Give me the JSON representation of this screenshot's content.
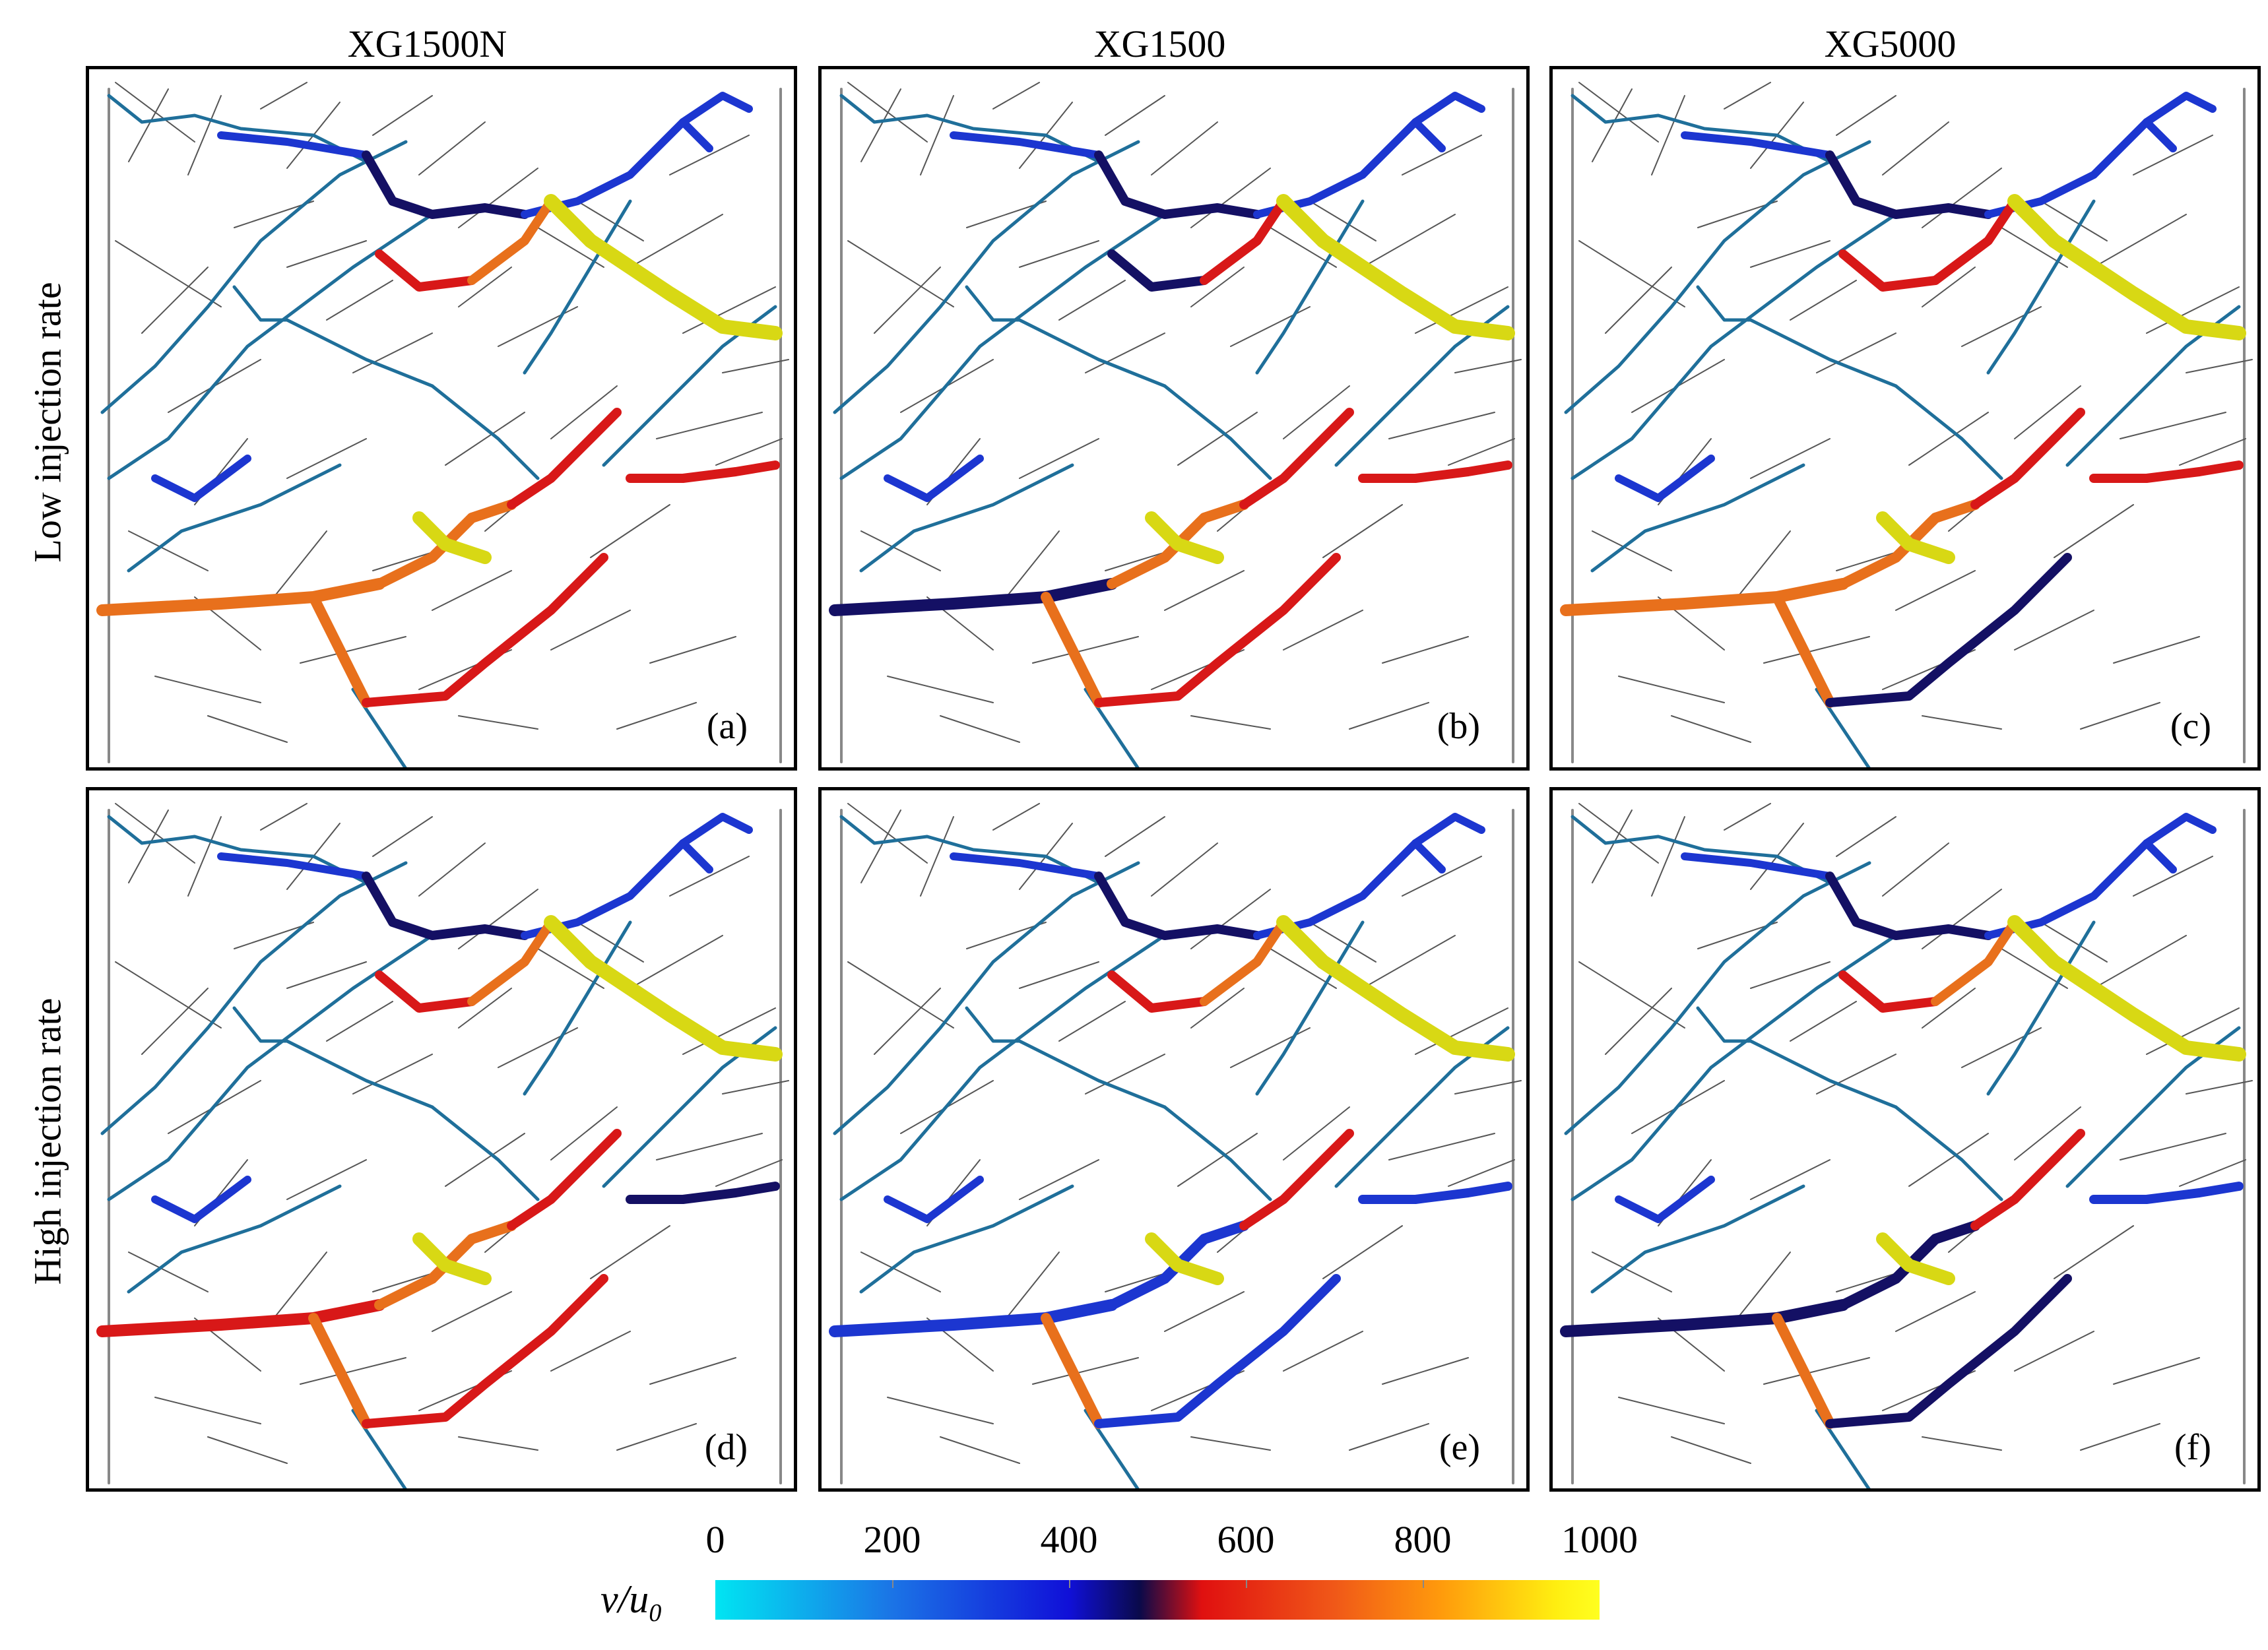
{
  "columns": [
    "XG1500N",
    "XG1500",
    "XG5000"
  ],
  "rows": [
    "Low injection rate",
    "High injection rate"
  ],
  "panels": [
    {
      "label": "(a)",
      "pattern": "a"
    },
    {
      "label": "(b)",
      "pattern": "b"
    },
    {
      "label": "(c)",
      "pattern": "c"
    },
    {
      "label": "(d)",
      "pattern": "d"
    },
    {
      "label": "(e)",
      "pattern": "e"
    },
    {
      "label": "(f)",
      "pattern": "f"
    }
  ],
  "colorbar": {
    "label_main": "v/u",
    "label_sub": "0",
    "min": 0,
    "max": 1000,
    "ticks": [
      "0",
      "200",
      "400",
      "600",
      "800",
      "1000"
    ]
  },
  "colors": {
    "cyan": "#00d8ee",
    "teal": "#1f6f9a",
    "blue": "#1c36d0",
    "navy": "#141064",
    "red": "#d81818",
    "orange": "#e8701c",
    "yellow": "#d8d814",
    "grey": "#555555"
  }
}
